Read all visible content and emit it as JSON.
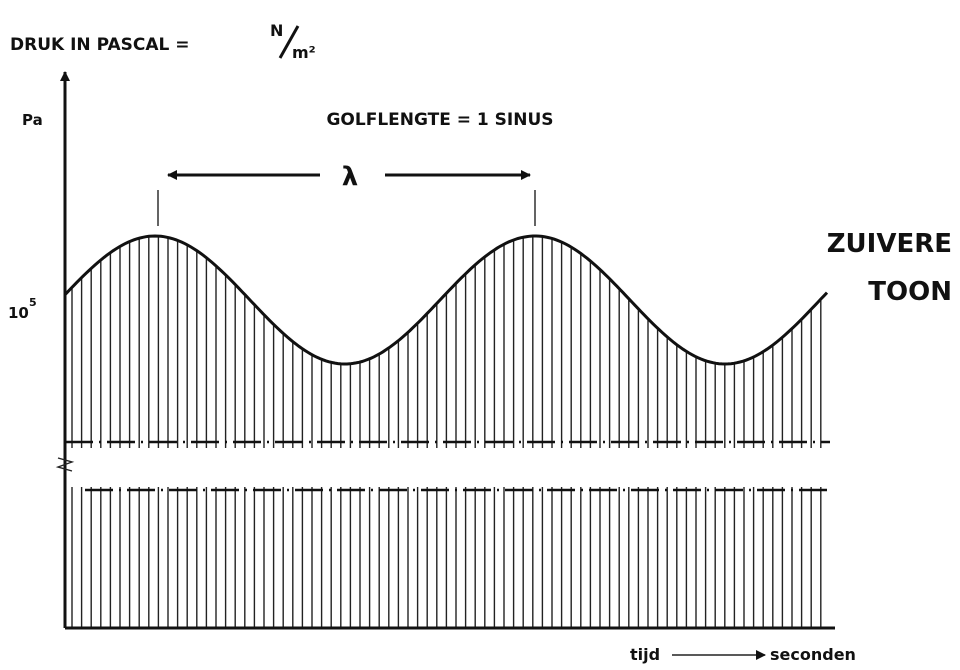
{
  "header": {
    "label": "DRUK IN PASCAL =",
    "unit_numerator": "N",
    "unit_denominator": "m²"
  },
  "y_axis": {
    "label": "Pa",
    "reference_base": "10",
    "reference_exponent": "5"
  },
  "wavelength": {
    "label": "GOLFLENGTE = 1 SINUS",
    "symbol": "λ"
  },
  "side_title": {
    "line1": "ZUIVERE",
    "line2": "TOON"
  },
  "x_axis": {
    "label_start": "tijd",
    "label_end": "seconden"
  }
}
